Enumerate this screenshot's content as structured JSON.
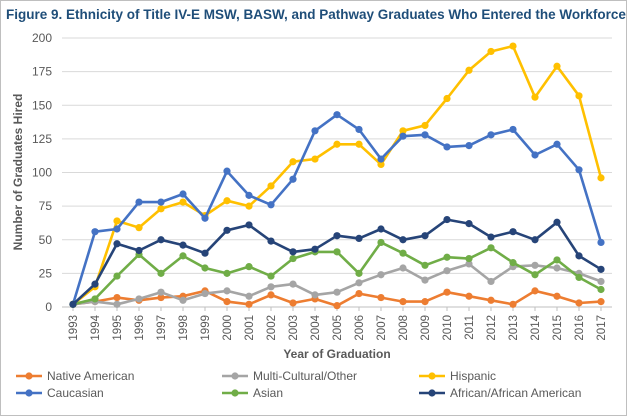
{
  "chart_data": {
    "type": "line",
    "title": "Figure 9. Ethnicity of Title IV-E MSW, BASW, and Pathway Graduates Who Entered the Workforce",
    "xlabel": "Year of Graduation",
    "ylabel": "Number of Graduates Hired",
    "ylim": [
      0,
      200
    ],
    "yticks": [
      "0",
      "25",
      "50",
      "75",
      "100",
      "125",
      "150",
      "175",
      "200"
    ],
    "grid": true,
    "legend_position": "bottom",
    "categories": [
      "1993",
      "1994",
      "1995",
      "1996",
      "1997",
      "1998",
      "1999",
      "2000",
      "2001",
      "2002",
      "2003",
      "2004",
      "2005",
      "2006",
      "2007",
      "2008",
      "2009",
      "2010",
      "2011",
      "2012",
      "2013",
      "2014",
      "2015",
      "2016",
      "2017"
    ],
    "series": [
      {
        "name": "Native American",
        "color": "#ed7d31",
        "values": [
          2,
          4,
          7,
          5,
          7,
          8,
          12,
          4,
          2,
          9,
          3,
          6,
          1,
          10,
          7,
          4,
          4,
          11,
          8,
          5,
          2,
          12,
          8,
          3,
          4
        ]
      },
      {
        "name": "Multi-Cultural/Other",
        "color": "#a5a5a5",
        "values": [
          2,
          4,
          2,
          6,
          11,
          5,
          10,
          12,
          8,
          15,
          17,
          9,
          11,
          18,
          24,
          29,
          20,
          27,
          32,
          19,
          30,
          31,
          29,
          25,
          19
        ]
      },
      {
        "name": "Hispanic",
        "color": "#ffc000",
        "values": [
          2,
          15,
          64,
          59,
          73,
          78,
          68,
          79,
          75,
          90,
          108,
          110,
          121,
          121,
          106,
          131,
          135,
          155,
          176,
          190,
          194,
          156,
          179,
          157,
          96
        ]
      },
      {
        "name": "Caucasian",
        "color": "#4472c4",
        "values": [
          2,
          56,
          58,
          78,
          78,
          84,
          66,
          101,
          83,
          76,
          95,
          131,
          143,
          132,
          110,
          127,
          128,
          119,
          120,
          128,
          132,
          113,
          121,
          102,
          48
        ]
      },
      {
        "name": "Asian",
        "color": "#70ad47",
        "values": [
          2,
          6,
          23,
          39,
          25,
          38,
          29,
          25,
          30,
          23,
          36,
          41,
          41,
          25,
          48,
          40,
          31,
          37,
          36,
          44,
          33,
          24,
          35,
          22,
          13
        ]
      },
      {
        "name": "African/African American",
        "color": "#264478",
        "values": [
          2,
          17,
          47,
          42,
          50,
          46,
          40,
          57,
          61,
          49,
          41,
          43,
          53,
          51,
          58,
          50,
          53,
          65,
          62,
          52,
          56,
          50,
          63,
          38,
          28
        ]
      }
    ]
  }
}
